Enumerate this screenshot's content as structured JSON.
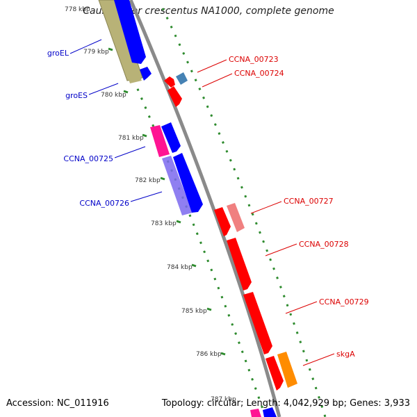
{
  "title": "Caulobacter crescentus NA1000, complete genome",
  "footer": {
    "accession": "Accession: NC_011916",
    "summary": "Topology: circular; Length: 4,042,929 bp; Genes: 3,933"
  },
  "colors": {
    "backbone": "#8a8a8a",
    "tick_ring": "#2e8b2e",
    "label_left": "#0000c8",
    "label_right": "#dc0000",
    "khaki": "#b8b277",
    "blue": "#0000ff",
    "red": "#ff0000",
    "salmon": "#f08080",
    "orange": "#ff8c00",
    "steelblue": "#4682b4",
    "magenta": "#ff1493",
    "purple": "#7b68ee"
  },
  "kbp_ticks": [
    "778 kbp",
    "779 kbp",
    "780 kbp",
    "781 kbp",
    "782 kbp",
    "783 kbp",
    "784 kbp",
    "785 kbp",
    "786 kbp",
    "787 kbp"
  ],
  "genes_left": [
    "groEL",
    "groES",
    "CCNA_00725",
    "CCNA_00726"
  ],
  "genes_right": [
    "CCNA_00723",
    "CCNA_00724",
    "CCNA_00727",
    "CCNA_00728",
    "CCNA_00729",
    "skgA"
  ]
}
